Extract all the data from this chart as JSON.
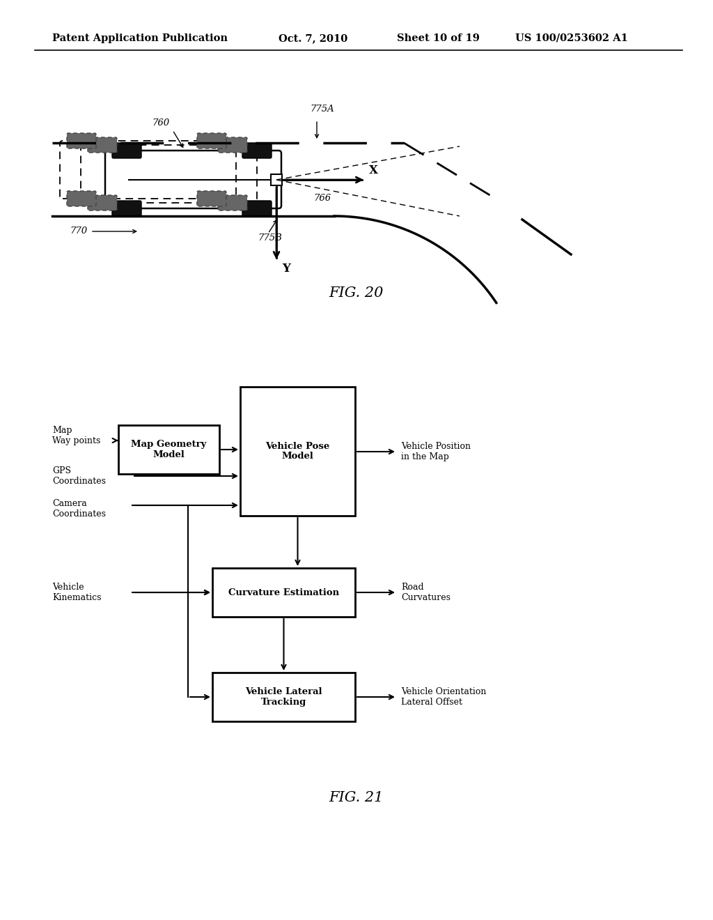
{
  "bg_color": "#ffffff",
  "fig20_label": "FIG. 20",
  "fig21_label": "FIG. 21",
  "header_patent": "US 100/0253602 A1"
}
